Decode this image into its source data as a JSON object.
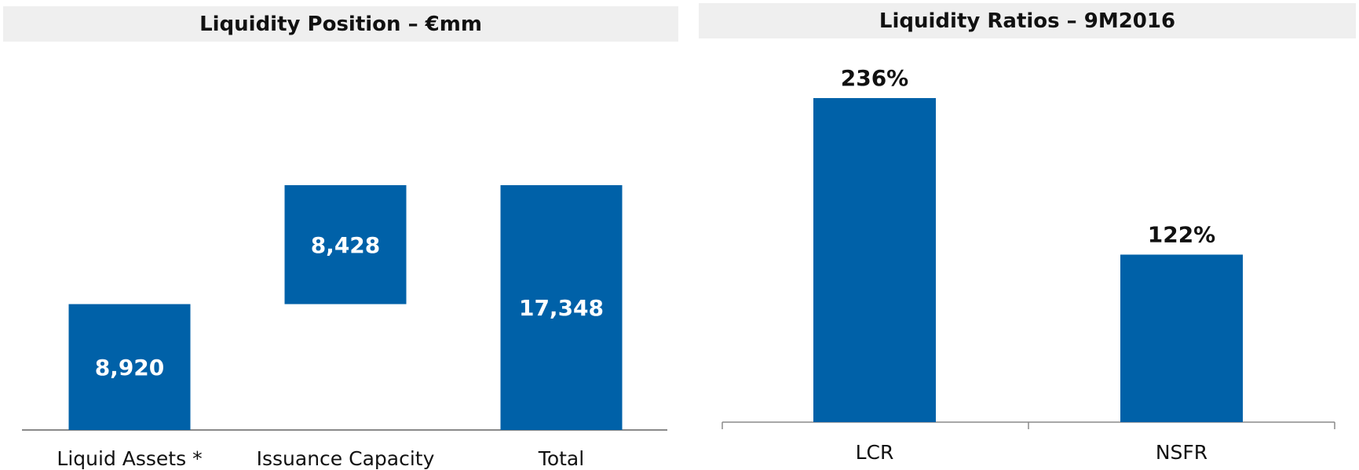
{
  "colors": {
    "bar": "#0061A8",
    "axis": "#8a8a8a",
    "header_bg": "#efefef"
  },
  "chart_data": [
    {
      "type": "bar",
      "variant": "waterfall",
      "title": "Liquidity Position – €mm",
      "categories": [
        "Liquid Assets *",
        "Issuance Capacity",
        "Total"
      ],
      "values": [
        8920,
        8428,
        17348
      ],
      "labels": [
        "8,920",
        "8,428",
        "17,348"
      ],
      "ylim": [
        0,
        17348
      ]
    },
    {
      "type": "bar",
      "title": "Liquidity Ratios – 9M2016",
      "categories": [
        "LCR",
        "NSFR"
      ],
      "values": [
        236,
        122
      ],
      "labels": [
        "236%",
        "122%"
      ],
      "ylim": [
        0,
        236
      ]
    }
  ]
}
